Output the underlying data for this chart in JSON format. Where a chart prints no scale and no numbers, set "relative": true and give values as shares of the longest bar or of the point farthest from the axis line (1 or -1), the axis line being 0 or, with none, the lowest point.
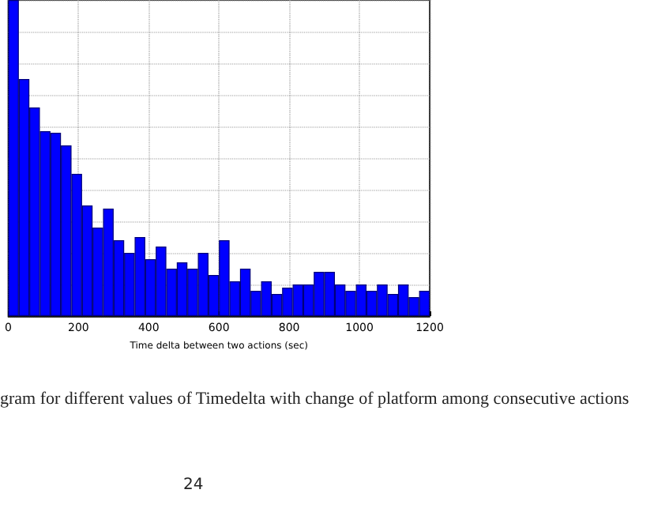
{
  "chart_data": {
    "type": "bar",
    "xlabel": "Time delta between two actions (sec)",
    "x": [
      15,
      45,
      75,
      105,
      135,
      165,
      195,
      225,
      255,
      285,
      315,
      345,
      375,
      405,
      435,
      465,
      495,
      525,
      555,
      585,
      615,
      645,
      675,
      705,
      735,
      765,
      795,
      825,
      855,
      885,
      915,
      945,
      975,
      1005,
      1035,
      1065,
      1095,
      1125,
      1155,
      1185
    ],
    "values": [
      1,
      0.75,
      0.66,
      0.585,
      0.58,
      0.54,
      0.45,
      0.35,
      0.28,
      0.34,
      0.24,
      0.2,
      0.25,
      0.18,
      0.22,
      0.15,
      0.17,
      0.15,
      0.2,
      0.13,
      0.24,
      0.11,
      0.15,
      0.08,
      0.11,
      0.07,
      0.09,
      0.1,
      0.1,
      0.14,
      0.14,
      0.1,
      0.08,
      0.1,
      0.08,
      0.1,
      0.07,
      0.1,
      0.06,
      0.08
    ],
    "relative": true,
    "color": "#0000ff",
    "xlim": [
      0,
      1200
    ],
    "xticks": [
      0,
      200,
      400,
      600,
      800,
      1000,
      1200
    ],
    "grid": true,
    "annotations": [
      "gram for different values of Timedelta with change of platform among consecutive actions",
      "24"
    ]
  }
}
